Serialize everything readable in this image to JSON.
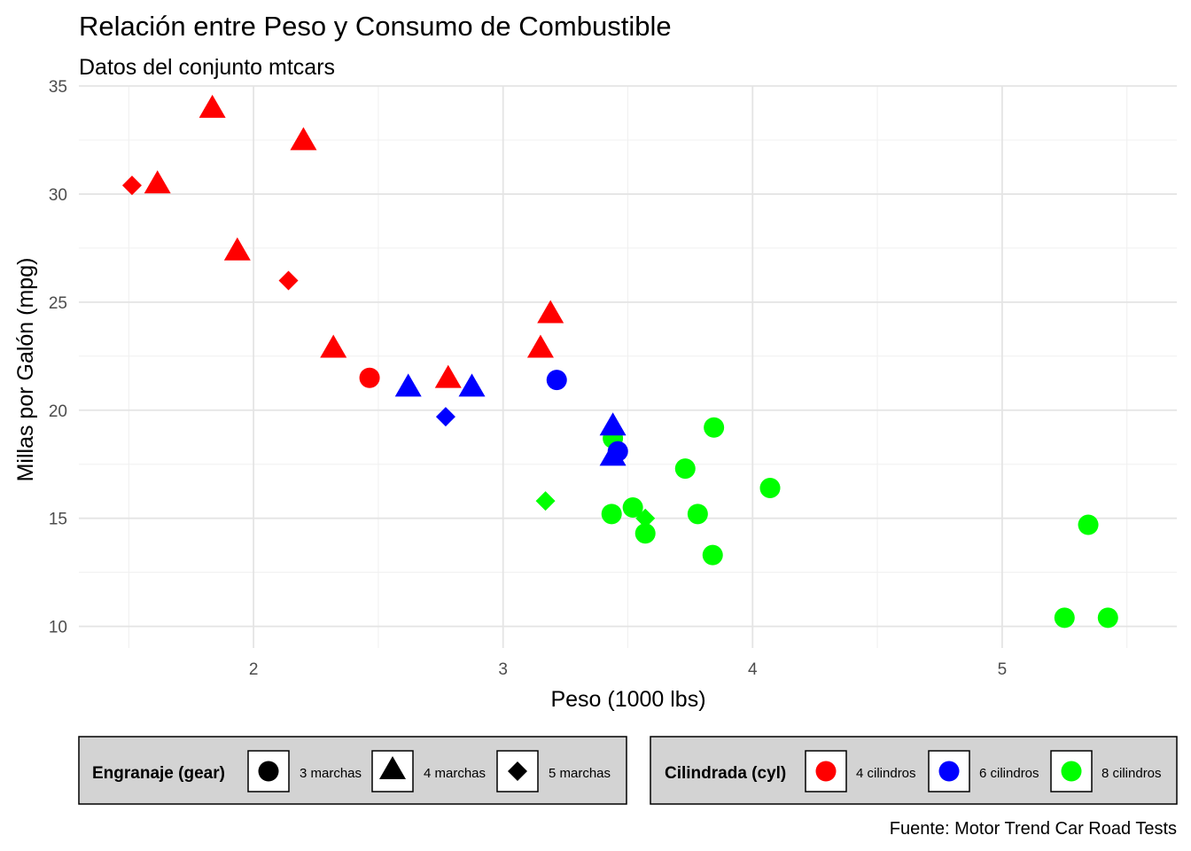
{
  "chart_data": {
    "type": "scatter",
    "title": "Relación entre Peso y Consumo de Combustible",
    "subtitle": "Datos del conjunto mtcars",
    "xlabel": "Peso (1000 lbs)",
    "ylabel": "Millas por Galón (mpg)",
    "caption": "Fuente: Motor Trend Car Road Tests",
    "xlim": [
      1.3,
      5.7
    ],
    "ylim": [
      9.0,
      35.0
    ],
    "x_ticks": [
      2,
      3,
      4,
      5
    ],
    "y_ticks": [
      10,
      15,
      20,
      25,
      30,
      35
    ],
    "x_minor": [
      1.5,
      2.5,
      3.5,
      4.5,
      5.5
    ],
    "y_minor": [
      12.5,
      17.5,
      22.5,
      27.5,
      32.5
    ],
    "grid": true,
    "legend_position": "bottom",
    "shape_legend": {
      "title": "Engranaje (gear)",
      "entries": [
        {
          "label": "3 marchas",
          "shape": "circle"
        },
        {
          "label": "4 marchas",
          "shape": "triangle"
        },
        {
          "label": "5 marchas",
          "shape": "diamond"
        }
      ]
    },
    "color_legend": {
      "title": "Cilindrada (cyl)",
      "entries": [
        {
          "label": "4 cilindros",
          "color": "#ff0000"
        },
        {
          "label": "6 cilindros",
          "color": "#0000ff"
        },
        {
          "label": "8 cilindros",
          "color": "#00ff00"
        }
      ]
    },
    "points": [
      {
        "x": 2.62,
        "y": 21.0,
        "cyl": 6,
        "gear": 4
      },
      {
        "x": 2.875,
        "y": 21.0,
        "cyl": 6,
        "gear": 4
      },
      {
        "x": 2.32,
        "y": 22.8,
        "cyl": 4,
        "gear": 4
      },
      {
        "x": 3.215,
        "y": 21.4,
        "cyl": 6,
        "gear": 3
      },
      {
        "x": 3.44,
        "y": 18.7,
        "cyl": 8,
        "gear": 3
      },
      {
        "x": 3.46,
        "y": 18.1,
        "cyl": 6,
        "gear": 3
      },
      {
        "x": 3.57,
        "y": 14.3,
        "cyl": 8,
        "gear": 3
      },
      {
        "x": 3.19,
        "y": 24.4,
        "cyl": 4,
        "gear": 4
      },
      {
        "x": 3.15,
        "y": 22.8,
        "cyl": 4,
        "gear": 4
      },
      {
        "x": 3.44,
        "y": 19.2,
        "cyl": 6,
        "gear": 4
      },
      {
        "x": 3.44,
        "y": 17.8,
        "cyl": 6,
        "gear": 4
      },
      {
        "x": 4.07,
        "y": 16.4,
        "cyl": 8,
        "gear": 3
      },
      {
        "x": 3.73,
        "y": 17.3,
        "cyl": 8,
        "gear": 3
      },
      {
        "x": 3.78,
        "y": 15.2,
        "cyl": 8,
        "gear": 3
      },
      {
        "x": 5.25,
        "y": 10.4,
        "cyl": 8,
        "gear": 3
      },
      {
        "x": 5.424,
        "y": 10.4,
        "cyl": 8,
        "gear": 3
      },
      {
        "x": 5.345,
        "y": 14.7,
        "cyl": 8,
        "gear": 3
      },
      {
        "x": 2.2,
        "y": 32.4,
        "cyl": 4,
        "gear": 4
      },
      {
        "x": 1.615,
        "y": 30.4,
        "cyl": 4,
        "gear": 4
      },
      {
        "x": 1.835,
        "y": 33.9,
        "cyl": 4,
        "gear": 4
      },
      {
        "x": 2.465,
        "y": 21.5,
        "cyl": 4,
        "gear": 3
      },
      {
        "x": 3.52,
        "y": 15.5,
        "cyl": 8,
        "gear": 3
      },
      {
        "x": 3.435,
        "y": 15.2,
        "cyl": 8,
        "gear": 3
      },
      {
        "x": 3.84,
        "y": 13.3,
        "cyl": 8,
        "gear": 3
      },
      {
        "x": 3.845,
        "y": 19.2,
        "cyl": 8,
        "gear": 3
      },
      {
        "x": 1.935,
        "y": 27.3,
        "cyl": 4,
        "gear": 4
      },
      {
        "x": 2.14,
        "y": 26.0,
        "cyl": 4,
        "gear": 5
      },
      {
        "x": 1.513,
        "y": 30.4,
        "cyl": 4,
        "gear": 5
      },
      {
        "x": 3.17,
        "y": 15.8,
        "cyl": 8,
        "gear": 5
      },
      {
        "x": 2.77,
        "y": 19.7,
        "cyl": 6,
        "gear": 5
      },
      {
        "x": 3.57,
        "y": 15.0,
        "cyl": 8,
        "gear": 5
      },
      {
        "x": 2.78,
        "y": 21.4,
        "cyl": 4,
        "gear": 4
      }
    ]
  }
}
